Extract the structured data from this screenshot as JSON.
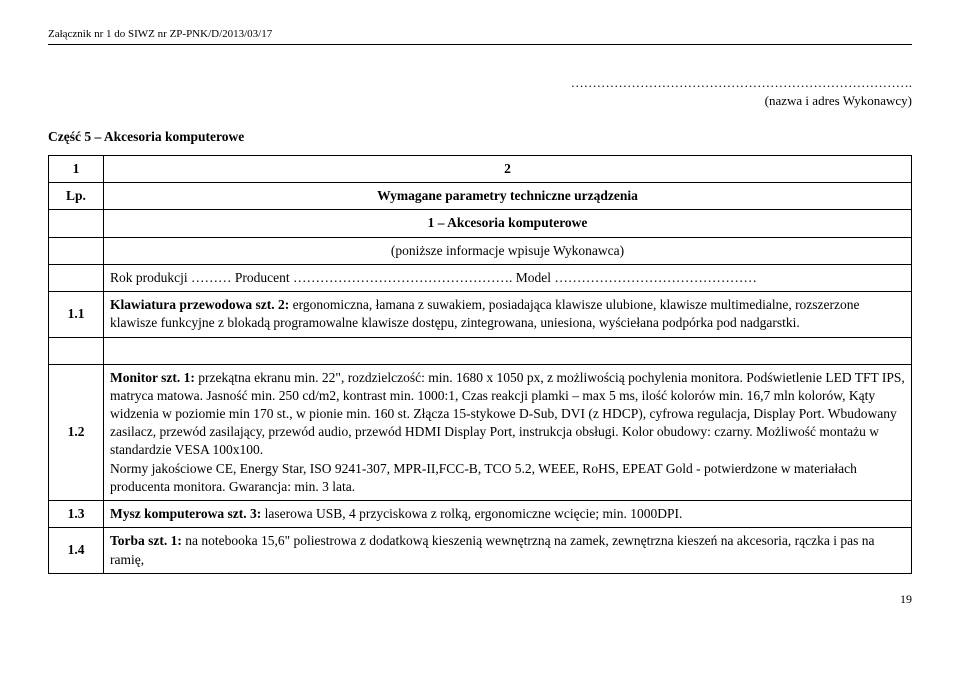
{
  "header": "Załącznik nr 1 do SIWZ nr ZP-PNK/D/2013/03/17",
  "dots": "…………………………………………………………………….",
  "name_addr": "(nazwa i adres Wykonawcy)",
  "section_title": "Część 5 – Akcesoria komputerowe",
  "head": {
    "c1": "1",
    "c2": "2"
  },
  "row_lp": {
    "c1": "Lp.",
    "c2": "Wymagane parametry techniczne urządzenia"
  },
  "row_acc_title": "1 – Akcesoria komputerowe",
  "row_info": "(poniższe informacje wpisuje Wykonawca)",
  "row_fields": "Rok produkcji ……… Producent …………………………………………. Model ………………………………………",
  "r11": {
    "num": "1.1",
    "bold": "Klawiatura przewodowa szt. 2:",
    "rest": " ergonomiczna, łamana z suwakiem, posiadająca klawisze ulubione, klawisze multimedialne, rozszerzone klawisze funkcyjne z blokadą programowalne klawisze dostępu, zintegrowana, uniesiona, wyściełana podpórka pod nadgarstki."
  },
  "r12": {
    "num": "1.2",
    "bold": "Monitor szt. 1:",
    "rest": " przekątna ekranu min. 22\", rozdzielczość: min. 1680 x 1050 px, z możliwością pochylenia monitora. Podświetlenie LED TFT IPS, matryca matowa. Jasność min. 250 cd/m2, kontrast min. 1000:1, Czas reakcji plamki – max 5 ms, ilość kolorów min. 16,7 mln kolorów, Kąty widzenia w poziomie min 170 st., w pionie min. 160 st. Złącza 15-stykowe D-Sub, DVI (z HDCP), cyfrowa regulacja, Display Port. Wbudowany zasilacz, przewód zasilający, przewód audio, przewód HDMI Display Port, instrukcja obsługi. Kolor obudowy: czarny. Możliwość montażu w standardzie VESA 100x100.\nNormy jakościowe CE, Energy Star, ISO 9241-307, MPR-II,FCC-B, TCO 5.2, WEEE, RoHS, EPEAT Gold - potwierdzone w materiałach producenta monitora. Gwarancja: min. 3 lata."
  },
  "r13": {
    "num": "1.3",
    "bold": "Mysz komputerowa szt. 3:",
    "rest": " laserowa USB, 4 przyciskowa z rolką, ergonomiczne wcięcie; min. 1000DPI."
  },
  "r14": {
    "num": "1.4",
    "bold": "Torba szt. 1:",
    "rest": " na notebooka 15,6\" poliestrowa z dodatkową kieszenią wewnętrzną  na zamek, zewnętrzna kieszeń na akcesoria, rączka i pas na ramię,"
  },
  "pagenum": "19"
}
